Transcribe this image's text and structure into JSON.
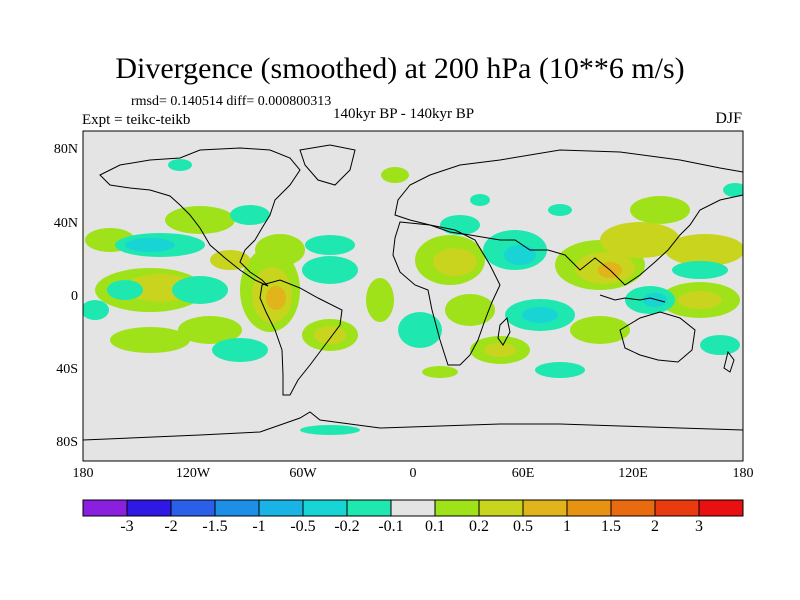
{
  "title": "Divergence (smoothed) at 200 hPa (10**6 m/s)",
  "stats_line": "rmsd= 0.140514 diff= 0.000800313",
  "experiment": "Expt = teikc-teikb",
  "period": "140kyr BP - 140kyr BP",
  "season": "DJF",
  "axes": {
    "lat_labels": [
      "80N",
      "40N",
      "0",
      "40S",
      "80S"
    ],
    "lat_values": [
      80,
      40,
      0,
      -40,
      -80
    ],
    "lon_labels": [
      "180",
      "120W",
      "60W",
      "0",
      "60E",
      "120E",
      "180"
    ],
    "lon_values": [
      -180,
      -120,
      -60,
      0,
      60,
      120,
      180
    ]
  },
  "colorbar": {
    "labels": [
      "-3",
      "-2",
      "-1.5",
      "-1",
      "-0.5",
      "-0.2",
      "-0.1",
      "0.1",
      "0.2",
      "0.5",
      "1",
      "1.5",
      "2",
      "3"
    ],
    "colors": [
      "#8a1fe0",
      "#2f18e6",
      "#2b5fea",
      "#1e8fe6",
      "#1ab3e6",
      "#19d4d4",
      "#1ee8b0",
      "#e4e4e4",
      "#9fe21a",
      "#c8d41e",
      "#e0b41a",
      "#e89212",
      "#ea6a10",
      "#ea3a10",
      "#e81010"
    ]
  },
  "colors": {
    "background": "#e4e4e4",
    "coast": "#000000"
  }
}
